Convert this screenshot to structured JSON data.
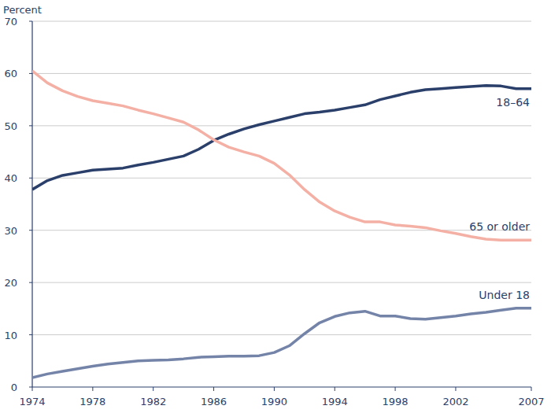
{
  "chart_data": {
    "type": "line",
    "ylabel": "Percent",
    "x": [
      1974,
      1975,
      1976,
      1977,
      1978,
      1979,
      1980,
      1981,
      1982,
      1983,
      1984,
      1985,
      1986,
      1987,
      1988,
      1989,
      1990,
      1991,
      1992,
      1993,
      1994,
      1995,
      1996,
      1997,
      1998,
      1999,
      2000,
      2001,
      2002,
      2003,
      2004,
      2005,
      2006,
      2007
    ],
    "xlim": [
      1974,
      2007
    ],
    "xticks": [
      1974,
      1978,
      1982,
      1986,
      1990,
      1994,
      1998,
      2002,
      2007
    ],
    "ylim": [
      0,
      70
    ],
    "yticks": [
      0,
      10,
      20,
      30,
      40,
      50,
      60,
      70
    ],
    "grid": true,
    "series": [
      {
        "name": "18–64",
        "color": "#2b3f6b",
        "values": [
          37.8,
          39.5,
          40.5,
          41.0,
          41.5,
          41.7,
          41.9,
          42.5,
          43.0,
          43.6,
          44.2,
          45.5,
          47.2,
          48.4,
          49.4,
          50.2,
          50.9,
          51.6,
          52.3,
          52.6,
          53.0,
          53.5,
          54.0,
          55.0,
          55.7,
          56.4,
          56.9,
          57.1,
          57.3,
          57.5,
          57.7,
          57.6,
          57.1,
          57.1
        ]
      },
      {
        "name": "65 or older",
        "color": "#f4b0a4",
        "values": [
          60.5,
          58.2,
          56.7,
          55.6,
          54.8,
          54.3,
          53.8,
          53.0,
          52.3,
          51.5,
          50.7,
          49.2,
          47.3,
          45.9,
          45.0,
          44.2,
          42.8,
          40.6,
          37.8,
          35.4,
          33.7,
          32.5,
          31.6,
          31.6,
          31.0,
          30.8,
          30.5,
          29.9,
          29.4,
          28.8,
          28.3,
          28.1,
          28.1,
          28.1
        ]
      },
      {
        "name": "Under 18",
        "color": "#7483a8",
        "values": [
          1.8,
          2.5,
          3.0,
          3.5,
          4.0,
          4.4,
          4.7,
          5.0,
          5.1,
          5.2,
          5.4,
          5.7,
          5.8,
          5.9,
          5.9,
          6.0,
          6.6,
          7.9,
          10.2,
          12.3,
          13.5,
          14.2,
          14.5,
          13.6,
          13.6,
          13.1,
          13.0,
          13.3,
          13.6,
          14.0,
          14.3,
          14.7,
          15.1,
          15.1
        ]
      }
    ]
  }
}
